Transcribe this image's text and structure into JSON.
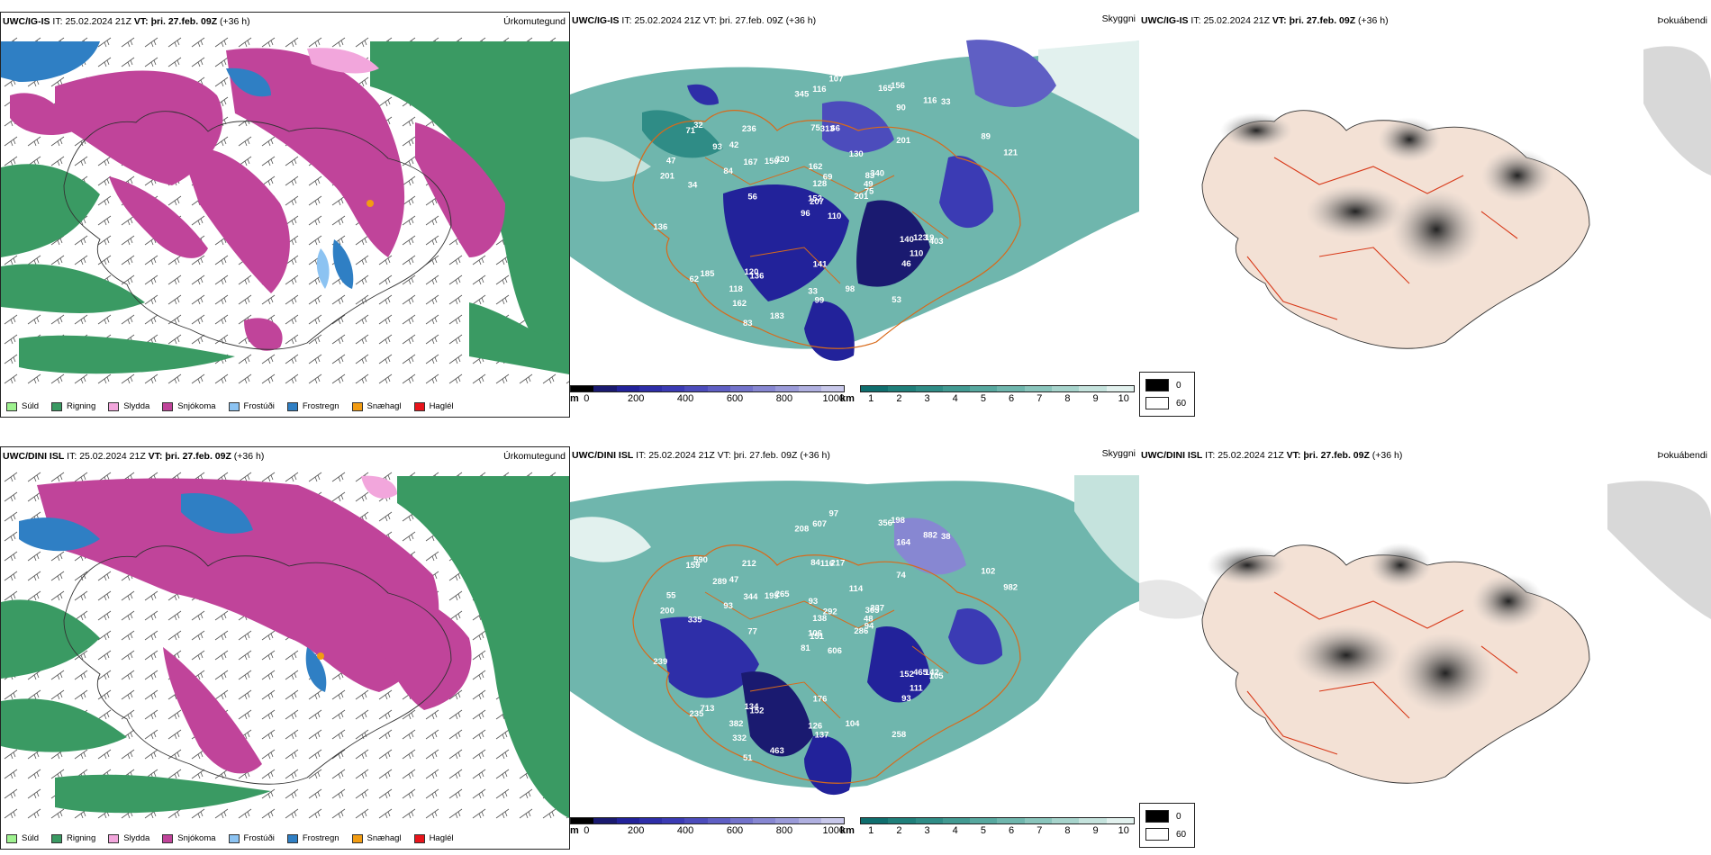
{
  "panels": {
    "p1": {
      "model": "UWC/IG-IS",
      "it_label": "IT:",
      "it_value": "25.02.2024 21Z",
      "vt_label": "VT:",
      "vt_value": "þri. 27.feb. 09Z",
      "lead": "(+36 h)",
      "product": "Úrkomutegund"
    },
    "p2": {
      "model": "UWC/IG-IS",
      "it_label": "IT:",
      "it_value": "25.02.2024 21Z",
      "vt_label": "VT:",
      "vt_value": "þri. 27.feb. 09Z",
      "lead": "(+36 h)",
      "product": "Skyggni"
    },
    "p3": {
      "model": "UWC/IG-IS",
      "it_label": "IT:",
      "it_value": "25.02.2024 21Z",
      "vt_label": "VT:",
      "vt_value": "þri. 27.feb. 09Z",
      "lead": "(+36 h)",
      "product": "Þokuábendi"
    },
    "p4": {
      "model": "UWC/DINI ISL",
      "it_label": "IT:",
      "it_value": "25.02.2024 21Z",
      "vt_label": "VT:",
      "vt_value": "þri. 27.feb. 09Z",
      "lead": "(+36 h)",
      "product": "Úrkomutegund"
    },
    "p5": {
      "model": "UWC/DINI ISL",
      "it_label": "IT:",
      "it_value": "25.02.2024 21Z",
      "vt_label": "VT:",
      "vt_value": "þri. 27.feb. 09Z",
      "lead": "(+36 h)",
      "product": "Skyggni"
    },
    "p6": {
      "model": "UWC/DINI ISL",
      "it_label": "IT:",
      "it_value": "25.02.2024 21Z",
      "vt_label": "VT:",
      "vt_value": "þri. 27.feb. 09Z",
      "lead": "(+36 h)",
      "product": "Þokuábendi"
    }
  },
  "ptype_legend": [
    {
      "label": "Súld",
      "color": "#9ef28f"
    },
    {
      "label": "Rigning",
      "color": "#3a9a63"
    },
    {
      "label": "Slydda",
      "color": "#f2a6dc"
    },
    {
      "label": "Snjókoma",
      "color": "#c0449a"
    },
    {
      "label": "Frostúði",
      "color": "#8cc3f2"
    },
    {
      "label": "Frostregn",
      "color": "#2f7fc4"
    },
    {
      "label": "Snæhagl",
      "color": "#f29c12"
    },
    {
      "label": "Haglél",
      "color": "#e8141b"
    }
  ],
  "cbar_m": {
    "unit": "m",
    "ticks": [
      "0",
      "200",
      "400",
      "600",
      "800",
      "1000"
    ],
    "colors": [
      "#000000",
      "#1a1a70",
      "#22229a",
      "#2e2ea8",
      "#3b3bb4",
      "#4c4cbc",
      "#5f5fc4",
      "#7373cb",
      "#8787d2",
      "#9b9bd9",
      "#b0b0e0",
      "#c8c8ea"
    ]
  },
  "cbar_km": {
    "unit": "km",
    "ticks": [
      "1",
      "2",
      "3",
      "4",
      "5",
      "6",
      "7",
      "8",
      "9",
      "10"
    ],
    "colors": [
      "#0f6e6e",
      "#1f7f7a",
      "#2f8c86",
      "#429a92",
      "#57a89f",
      "#6fb6ad",
      "#8ac5bc",
      "#a7d4cc",
      "#c5e3dd",
      "#e2f1ee"
    ]
  },
  "fog_legend": {
    "items": [
      {
        "label": "0",
        "color": "#000000"
      },
      {
        "label": "60",
        "color": "#ffffff"
      }
    ]
  },
  "visibility_labels_top": [
    "110",
    "71",
    "207",
    "83",
    "136",
    "156",
    "66",
    "90",
    "201",
    "34",
    "96",
    "201",
    "75",
    "130",
    "185",
    "320",
    "162",
    "313",
    "340",
    "403",
    "32",
    "116",
    "201",
    "140",
    "121",
    "152",
    "33",
    "128",
    "236",
    "116",
    "120",
    "19",
    "150",
    "84",
    "46",
    "83",
    "49",
    "99",
    "75",
    "62",
    "89",
    "110",
    "53",
    "118",
    "98",
    "107",
    "56",
    "47",
    "42",
    "33",
    "165",
    "345",
    "69",
    "141",
    "183",
    "123",
    "167",
    "93",
    "136",
    "162"
  ],
  "visibility_labels_bottom": [
    "606",
    "159",
    "151",
    "305",
    "152",
    "198",
    "217",
    "164",
    "286",
    "335",
    "81",
    "74",
    "84",
    "114",
    "713",
    "265",
    "332",
    "116",
    "237",
    "105",
    "590",
    "607",
    "200",
    "152",
    "982",
    "106",
    "126",
    "138",
    "212",
    "882",
    "134",
    "142",
    "195",
    "93",
    "93",
    "51",
    "48",
    "137",
    "94",
    "235",
    "102",
    "111",
    "258",
    "382",
    "104",
    "97",
    "77",
    "55",
    "47",
    "38",
    "356",
    "208",
    "292",
    "176",
    "463",
    "465",
    "344",
    "289",
    "239",
    "93"
  ]
}
